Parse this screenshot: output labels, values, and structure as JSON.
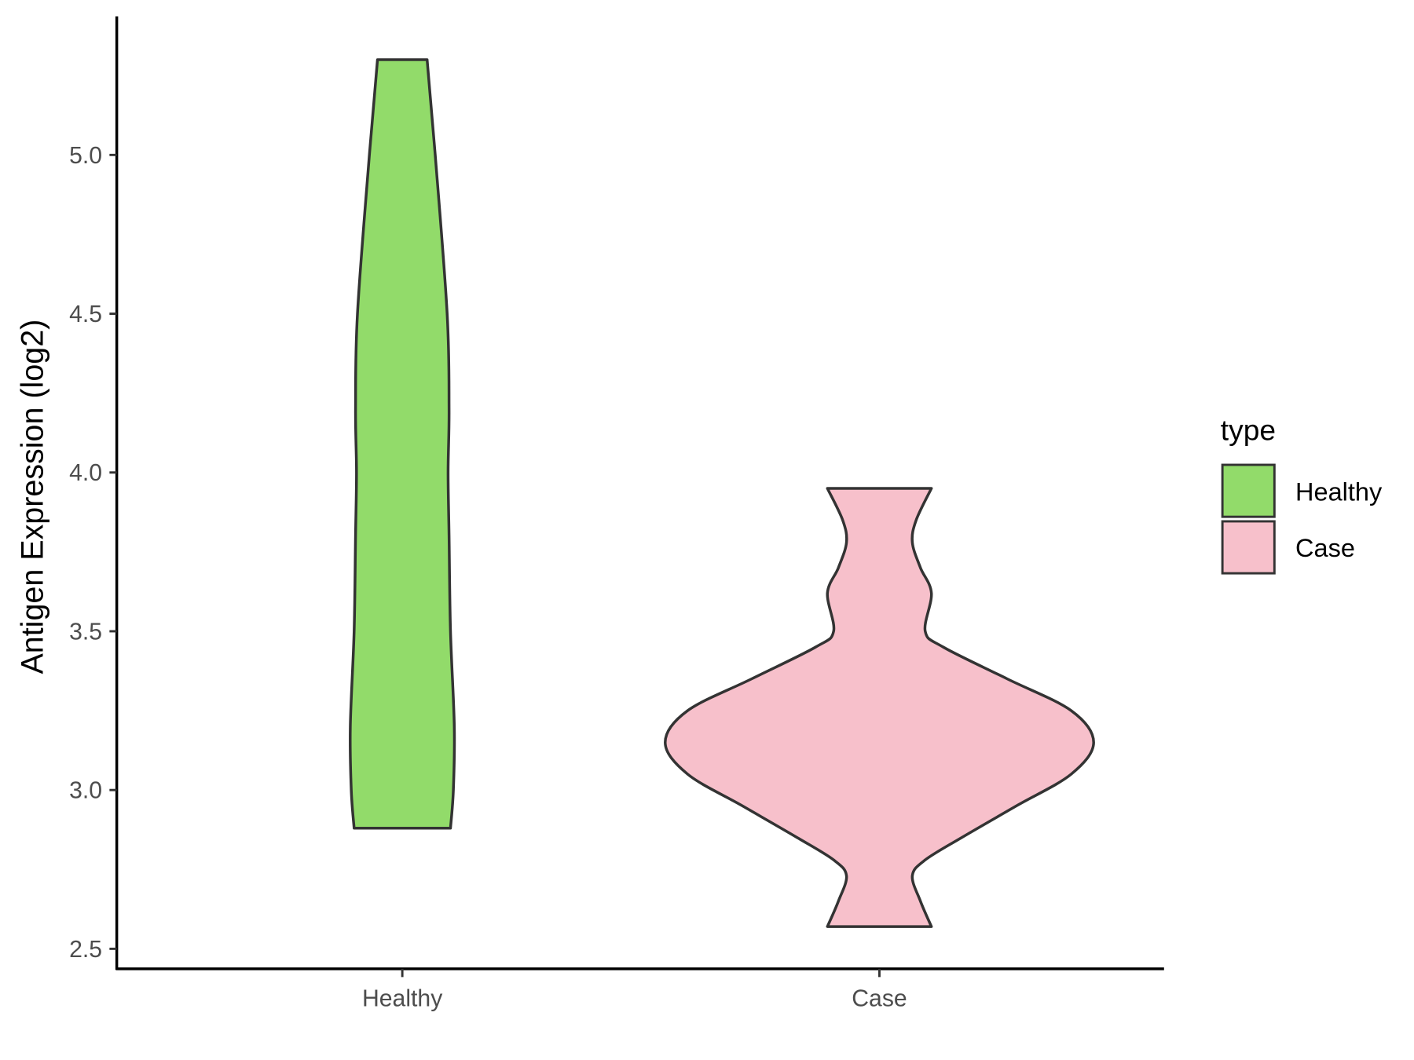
{
  "chart_data": {
    "type": "violin",
    "title": "",
    "xlabel": "",
    "ylabel": "Antigen Expression (log2)",
    "categories": [
      "Healthy",
      "Case"
    ],
    "ylim": [
      2.47,
      5.45
    ],
    "yticks": [
      "2.5",
      "3.0",
      "3.5",
      "4.0",
      "4.5",
      "5.0"
    ],
    "grid": false,
    "legend": {
      "title": "type",
      "position": "right",
      "entries": [
        "Healthy",
        "Case"
      ]
    },
    "series": [
      {
        "name": "Healthy",
        "color": "#92DB6A",
        "min": 2.88,
        "max": 5.3,
        "profile": [
          [
            2.88,
            0.101
          ],
          [
            3.0,
            0.107
          ],
          [
            3.2,
            0.109
          ],
          [
            3.5,
            0.101
          ],
          [
            3.8,
            0.098
          ],
          [
            4.0,
            0.096
          ],
          [
            4.2,
            0.098
          ],
          [
            4.5,
            0.094
          ],
          [
            5.0,
            0.069
          ],
          [
            5.3,
            0.052
          ]
        ]
      },
      {
        "name": "Case",
        "color": "#F7C0CB",
        "min": 2.57,
        "max": 3.95,
        "profile": [
          [
            2.57,
            0.109
          ],
          [
            2.65,
            0.086
          ],
          [
            2.73,
            0.069
          ],
          [
            2.78,
            0.096
          ],
          [
            2.85,
            0.172
          ],
          [
            2.95,
            0.287
          ],
          [
            3.05,
            0.402
          ],
          [
            3.15,
            0.449
          ],
          [
            3.25,
            0.402
          ],
          [
            3.35,
            0.268
          ],
          [
            3.45,
            0.134
          ],
          [
            3.5,
            0.096
          ],
          [
            3.62,
            0.109
          ],
          [
            3.7,
            0.086
          ],
          [
            3.78,
            0.069
          ],
          [
            3.85,
            0.077
          ],
          [
            3.95,
            0.109
          ]
        ]
      }
    ]
  }
}
